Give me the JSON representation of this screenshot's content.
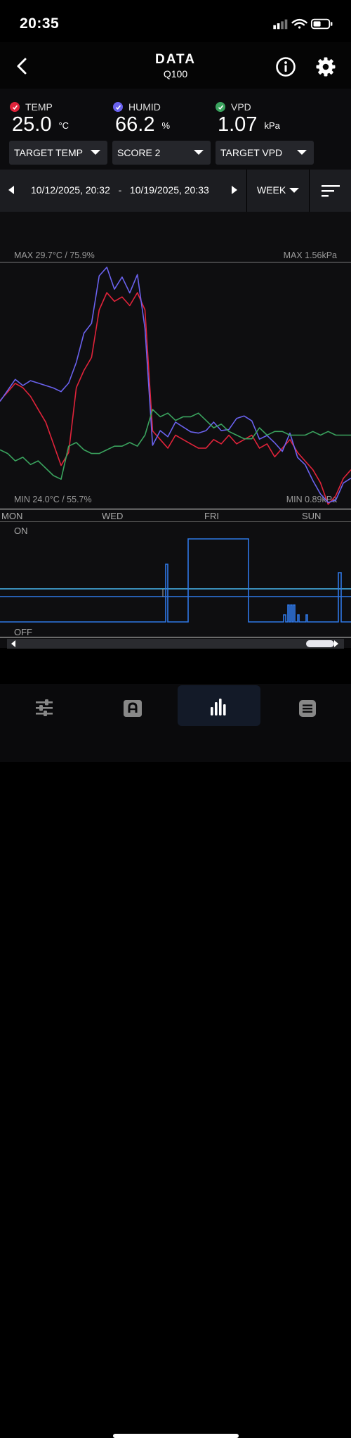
{
  "status": {
    "time": "20:35"
  },
  "header": {
    "title": "DATA",
    "subtitle": "Q100"
  },
  "colors": {
    "temp": "#e0233a",
    "humid": "#6a62ee",
    "vpd": "#3aa35e",
    "outlet": "#2f78e6",
    "threshold": "#49b7f0"
  },
  "readings": [
    {
      "label": "TEMP",
      "value": "25.0",
      "unit": "°C"
    },
    {
      "label": "HUMID",
      "value": "66.2",
      "unit": "%"
    },
    {
      "label": "VPD",
      "value": "1.07",
      "unit": "kPa"
    }
  ],
  "dropdowns": [
    "TARGET TEMP",
    "SCORE 2",
    "TARGET VPD"
  ],
  "range": {
    "start": "10/12/2025, 20:32",
    "separator": "-",
    "end": "10/19/2025, 20:33",
    "period": "WEEK"
  },
  "chart_data": {
    "type": "line",
    "max_label": "MAX 29.7°C / 75.9%",
    "max_right_label": "MAX 1.56kPa",
    "min_label": "MIN 24.0°C / 55.7%",
    "min_right_label": "MIN 0.89kPa",
    "x_tick_labels": [
      "MON",
      "WED",
      "FRI",
      "SUN"
    ],
    "temp_range": [
      24.0,
      29.7
    ],
    "humid_range": [
      55.7,
      75.9
    ],
    "vpd_range": [
      0.89,
      1.56
    ],
    "series": [
      {
        "name": "TEMP",
        "values": [
          26.5,
          26.7,
          26.9,
          26.8,
          26.6,
          26.3,
          26.0,
          25.5,
          25.0,
          25.3,
          26.8,
          27.2,
          27.5,
          28.6,
          29.0,
          28.8,
          28.9,
          28.7,
          29.0,
          28.6,
          25.8,
          25.6,
          25.4,
          25.7,
          25.6,
          25.5,
          25.4,
          25.4,
          25.6,
          25.5,
          25.7,
          25.5,
          25.6,
          25.7,
          25.4,
          25.5,
          25.2,
          25.4,
          25.6,
          25.3,
          25.1,
          24.9,
          24.6,
          24.1,
          24.3,
          24.7,
          24.9
        ]
      },
      {
        "name": "HUMID",
        "values": [
          64.5,
          65.4,
          66.3,
          65.8,
          66.2,
          66.0,
          65.8,
          65.6,
          65.3,
          66.0,
          67.7,
          70.1,
          70.9,
          74.8,
          75.5,
          73.7,
          74.7,
          73.4,
          74.9,
          70.5,
          60.9,
          62.1,
          61.6,
          62.8,
          62.4,
          62.0,
          61.9,
          62.1,
          62.8,
          62.1,
          62.2,
          63.1,
          63.3,
          62.9,
          61.4,
          61.7,
          61.1,
          60.4,
          61.9,
          59.9,
          59.3,
          58.0,
          56.9,
          56.2,
          56.4,
          57.8,
          58.2
        ]
      },
      {
        "name": "VPD",
        "values": [
          1.05,
          1.04,
          1.02,
          1.03,
          1.01,
          1.02,
          1.0,
          0.98,
          0.97,
          1.06,
          1.07,
          1.05,
          1.04,
          1.04,
          1.05,
          1.06,
          1.06,
          1.07,
          1.06,
          1.09,
          1.16,
          1.14,
          1.15,
          1.13,
          1.14,
          1.14,
          1.15,
          1.13,
          1.11,
          1.12,
          1.1,
          1.09,
          1.08,
          1.08,
          1.11,
          1.09,
          1.1,
          1.1,
          1.09,
          1.09,
          1.09,
          1.1,
          1.09,
          1.1,
          1.09,
          1.09,
          1.09
        ]
      }
    ]
  },
  "outlet_panel": {
    "on_label": "ON",
    "off_label": "OFF"
  }
}
